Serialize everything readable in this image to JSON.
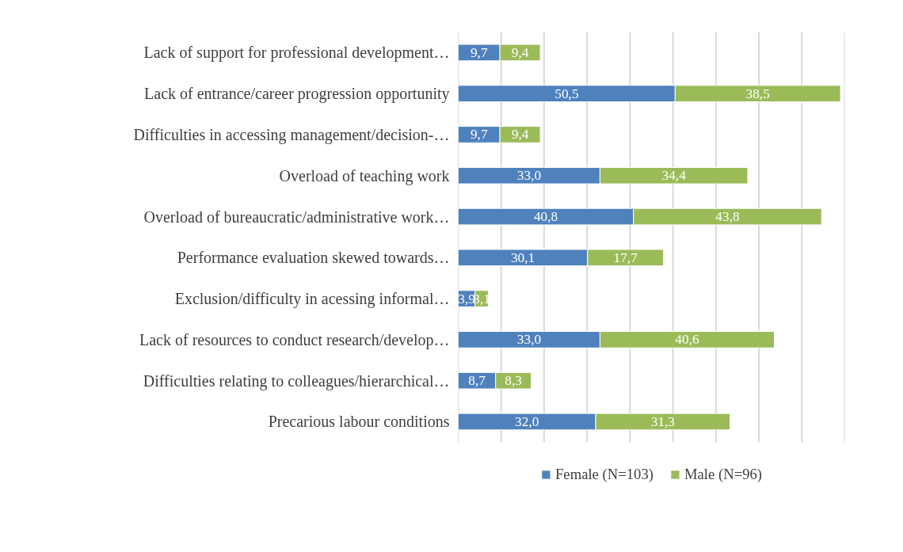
{
  "chart_data": {
    "type": "bar",
    "orientation": "horizontal",
    "stacked": true,
    "categories": [
      "Lack of support for professional development…",
      "Lack of entrance/career progression opportunity",
      "Difficulties in accessing management/decision-…",
      "Overload of teaching work",
      "Overload of bureaucratic/administrative work…",
      "Performance evaluation skewed towards…",
      "Exclusion/difficulty in acessing informal…",
      "Lack of resources to conduct research/develop…",
      "Difficulties relating to colleagues/hierarchical…",
      "Precarious labour conditions"
    ],
    "series": [
      {
        "name": "Female (N=103)",
        "color": "#4f81bd",
        "values": [
          9.7,
          50.5,
          9.7,
          33.0,
          40.8,
          30.1,
          3.9,
          33.0,
          8.7,
          32.0
        ],
        "value_labels": [
          "9,7",
          "50,5",
          "9,7",
          "33,0",
          "40,8",
          "30,1",
          "3,9",
          "33,0",
          "8,7",
          "32,0"
        ]
      },
      {
        "name": "Male (N=96)",
        "color": "#9bbb59",
        "values": [
          9.4,
          38.5,
          9.4,
          34.4,
          43.8,
          17.7,
          3.1,
          40.6,
          8.3,
          31.3
        ],
        "value_labels": [
          "9,4",
          "38,5",
          "9,4",
          "34,4",
          "43,8",
          "17,7",
          "3,1",
          "40,6",
          "8,3",
          "31,3"
        ]
      }
    ],
    "xticks": [
      0,
      10,
      20,
      30,
      40,
      50,
      60,
      70,
      80,
      90
    ],
    "tick_labels": "y",
    "grid": "x",
    "legend": "bottom"
  }
}
